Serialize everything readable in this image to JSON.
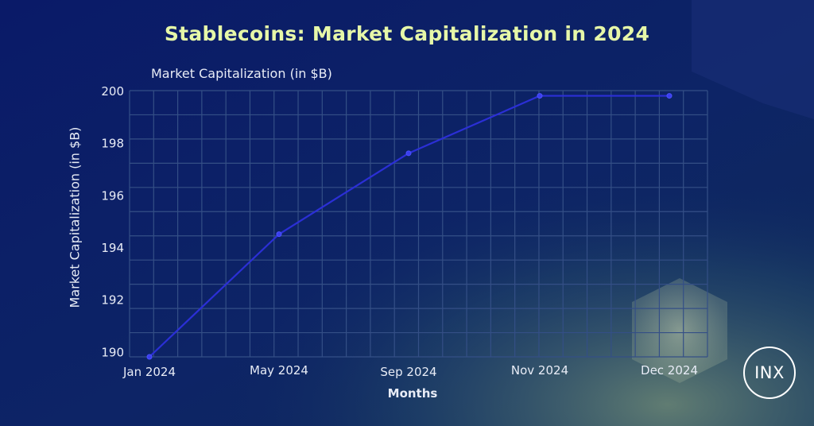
{
  "title": "Stablecoins: Market Capitalization in 2024",
  "logo_text": "INX",
  "colors": {
    "title": "#e6f7a8",
    "line": "#2b2fd6",
    "grid": "#344f86"
  },
  "chart_data": {
    "type": "line",
    "title": "Stablecoins: Market Capitalization in 2024",
    "subtitle": "Market Capitalization (in $B)",
    "xlabel": "Months",
    "ylabel": "Market Capitalization (in $B)",
    "categories": [
      "Jan 2024",
      "May 2024",
      "Sep 2024",
      "Nov 2024",
      "Dec 2024"
    ],
    "values": [
      189.8,
      194.5,
      197.6,
      199.8,
      199.8
    ],
    "ylim": [
      189.8,
      200
    ],
    "yticks": [
      190,
      192,
      194,
      196,
      198,
      200
    ],
    "grid": true,
    "legend": "none"
  }
}
